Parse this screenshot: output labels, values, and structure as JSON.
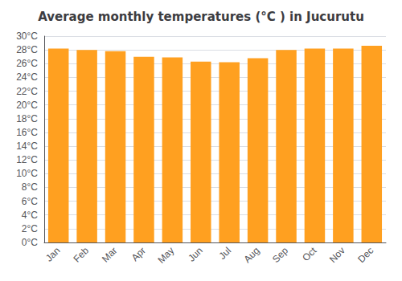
{
  "chart_data": {
    "type": "bar",
    "title": "Average monthly temperatures (°C ) in Jucurutu",
    "categories": [
      "Jan",
      "Feb",
      "Mar",
      "Apr",
      "May",
      "Jun",
      "Jul",
      "Aug",
      "Sep",
      "Oct",
      "Nov",
      "Dec"
    ],
    "values": [
      28.2,
      28.0,
      27.8,
      27.0,
      26.9,
      26.3,
      26.2,
      26.8,
      28.0,
      28.2,
      28.2,
      28.6
    ],
    "color": "#FFA020",
    "ylim": [
      0,
      30
    ],
    "yticks": [
      {
        "value": 0,
        "label": "0°C"
      },
      {
        "value": 2,
        "label": "2°C"
      },
      {
        "value": 4,
        "label": "4°C"
      },
      {
        "value": 6,
        "label": "6°C"
      },
      {
        "value": 8,
        "label": "8°C"
      },
      {
        "value": 10,
        "label": "10°C"
      },
      {
        "value": 12,
        "label": "12°C"
      },
      {
        "value": 14,
        "label": "14°C"
      },
      {
        "value": 16,
        "label": "16°C"
      },
      {
        "value": 18,
        "label": "18°C"
      },
      {
        "value": 20,
        "label": "20°C"
      },
      {
        "value": 22,
        "label": "22°C"
      },
      {
        "value": 24,
        "label": "24°C"
      },
      {
        "value": 26,
        "label": "26°C"
      },
      {
        "value": 28,
        "label": "28°C"
      },
      {
        "value": 30,
        "label": "30°C"
      }
    ],
    "grid": true
  }
}
